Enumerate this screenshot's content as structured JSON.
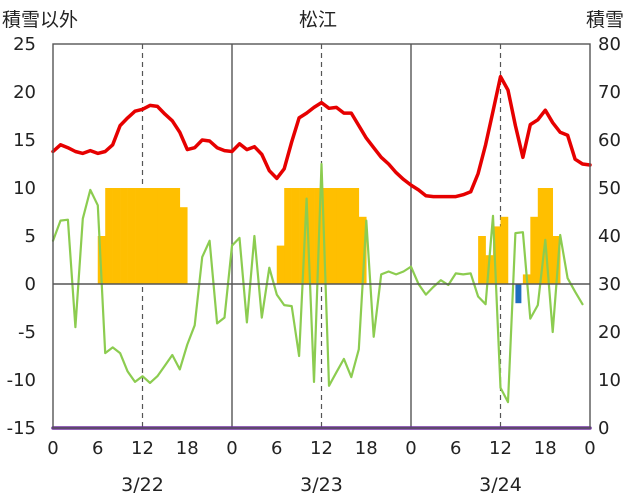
{
  "chart_data": {
    "type": "bar+line",
    "title": "松江",
    "left_axis_label": "積雪以外",
    "right_axis_label": "積雪",
    "left_ylim": [
      -15,
      25
    ],
    "left_ticks": [
      25,
      20,
      15,
      10,
      5,
      0,
      -5,
      -10,
      -15
    ],
    "right_ylim": [
      0,
      80
    ],
    "right_ticks": [
      80,
      70,
      60,
      50,
      40,
      30,
      20,
      10,
      0
    ],
    "x_range_hours": [
      0,
      72
    ],
    "x_ticks": [
      {
        "h": 0,
        "label": "0"
      },
      {
        "h": 6,
        "label": "6"
      },
      {
        "h": 12,
        "label": "12"
      },
      {
        "h": 18,
        "label": "18"
      },
      {
        "h": 24,
        "label": "0"
      },
      {
        "h": 30,
        "label": "6"
      },
      {
        "h": 36,
        "label": "12"
      },
      {
        "h": 42,
        "label": "18"
      },
      {
        "h": 48,
        "label": "0"
      },
      {
        "h": 54,
        "label": "6"
      },
      {
        "h": 60,
        "label": "12"
      },
      {
        "h": 66,
        "label": "18"
      },
      {
        "h": 72,
        "label": "0"
      }
    ],
    "dates": [
      {
        "h": 12,
        "label": "3/22"
      },
      {
        "h": 36,
        "label": "3/23"
      },
      {
        "h": 60,
        "label": "3/24"
      }
    ],
    "grid": true,
    "colors": {
      "temperature": "#e60000",
      "precip_bar": "#ffbf00",
      "snow_bar": "#1f6fbf",
      "wind": "#8ccc50",
      "snow_depth": "#7030a0",
      "grid": "#555555"
    },
    "series": [
      {
        "key": "temperature",
        "type": "line",
        "axis": "left",
        "points": [
          [
            0,
            13.8
          ],
          [
            1,
            14.5
          ],
          [
            2,
            14.2
          ],
          [
            3,
            13.8
          ],
          [
            4,
            13.6
          ],
          [
            5,
            13.9
          ],
          [
            6,
            13.6
          ],
          [
            7,
            13.8
          ],
          [
            8,
            14.5
          ],
          [
            9,
            16.5
          ],
          [
            10,
            17.3
          ],
          [
            11,
            18.0
          ],
          [
            12,
            18.2
          ],
          [
            13,
            18.6
          ],
          [
            14,
            18.5
          ],
          [
            15,
            17.7
          ],
          [
            16,
            17.0
          ],
          [
            17,
            15.8
          ],
          [
            18,
            14.0
          ],
          [
            19,
            14.2
          ],
          [
            20,
            15.0
          ],
          [
            21,
            14.9
          ],
          [
            22,
            14.2
          ],
          [
            23,
            13.9
          ],
          [
            24,
            13.8
          ],
          [
            25,
            14.6
          ],
          [
            26,
            14.0
          ],
          [
            27,
            14.3
          ],
          [
            28,
            13.5
          ],
          [
            29,
            11.8
          ],
          [
            30,
            11.0
          ],
          [
            31,
            12.0
          ],
          [
            32,
            14.8
          ],
          [
            33,
            17.3
          ],
          [
            34,
            17.8
          ],
          [
            35,
            18.4
          ],
          [
            36,
            18.9
          ],
          [
            37,
            18.3
          ],
          [
            38,
            18.4
          ],
          [
            39,
            17.8
          ],
          [
            40,
            17.8
          ],
          [
            41,
            16.5
          ],
          [
            42,
            15.2
          ],
          [
            43,
            14.2
          ],
          [
            44,
            13.2
          ],
          [
            45,
            12.5
          ],
          [
            46,
            11.6
          ],
          [
            47,
            10.9
          ],
          [
            48,
            10.3
          ],
          [
            49,
            9.8
          ],
          [
            50,
            9.2
          ],
          [
            51,
            9.1
          ],
          [
            52,
            9.1
          ],
          [
            53,
            9.1
          ],
          [
            54,
            9.1
          ],
          [
            55,
            9.3
          ],
          [
            56,
            9.6
          ],
          [
            57,
            11.5
          ],
          [
            58,
            14.5
          ],
          [
            59,
            18.0
          ],
          [
            60,
            21.6
          ],
          [
            61,
            20.2
          ],
          [
            62,
            16.5
          ],
          [
            63,
            13.2
          ],
          [
            64,
            16.6
          ],
          [
            65,
            17.1
          ],
          [
            66,
            18.1
          ],
          [
            67,
            16.8
          ],
          [
            68,
            15.8
          ],
          [
            69,
            15.5
          ],
          [
            70,
            13.0
          ],
          [
            71,
            12.5
          ],
          [
            72,
            12.4
          ]
        ]
      },
      {
        "key": "wind",
        "type": "line",
        "axis": "left",
        "points": [
          [
            0,
            4.5
          ],
          [
            1,
            6.6
          ],
          [
            2,
            6.7
          ],
          [
            3,
            -4.5
          ],
          [
            4,
            6.8
          ],
          [
            5,
            9.8
          ],
          [
            6,
            8.2
          ],
          [
            7,
            -7.2
          ],
          [
            8,
            -6.6
          ],
          [
            9,
            -7.2
          ],
          [
            10,
            -9.1
          ],
          [
            11,
            -10.2
          ],
          [
            12,
            -9.6
          ],
          [
            13,
            -10.3
          ],
          [
            14,
            -9.6
          ],
          [
            15,
            -8.5
          ],
          [
            16,
            -7.4
          ],
          [
            17,
            -8.9
          ],
          [
            18,
            -6.3
          ],
          [
            19,
            -4.3
          ],
          [
            20,
            2.8
          ],
          [
            21,
            4.5
          ],
          [
            22,
            -4.1
          ],
          [
            23,
            -3.5
          ],
          [
            24,
            4.0
          ],
          [
            25,
            4.8
          ],
          [
            26,
            -4.0
          ],
          [
            27,
            5.0
          ],
          [
            28,
            -3.5
          ],
          [
            29,
            1.7
          ],
          [
            30,
            -1.1
          ],
          [
            31,
            -2.2
          ],
          [
            32,
            -2.3
          ],
          [
            33,
            -7.5
          ],
          [
            34,
            8.9
          ],
          [
            35,
            -10.2
          ],
          [
            36,
            12.5
          ],
          [
            37,
            -10.6
          ],
          [
            38,
            -9.2
          ],
          [
            39,
            -7.8
          ],
          [
            40,
            -9.7
          ],
          [
            41,
            -6.8
          ],
          [
            42,
            6.6
          ],
          [
            43,
            -5.5
          ],
          [
            44,
            1.0
          ],
          [
            45,
            1.3
          ],
          [
            46,
            1.0
          ],
          [
            47,
            1.3
          ],
          [
            48,
            1.8
          ],
          [
            49,
            0.0
          ],
          [
            50,
            -1.1
          ],
          [
            51,
            -0.3
          ],
          [
            52,
            0.4
          ],
          [
            53,
            -0.1
          ],
          [
            54,
            1.1
          ],
          [
            55,
            1.0
          ],
          [
            56,
            1.1
          ],
          [
            57,
            -1.3
          ],
          [
            58,
            -2.1
          ],
          [
            59,
            7.1
          ],
          [
            60,
            -10.8
          ],
          [
            61,
            -12.3
          ],
          [
            62,
            5.3
          ],
          [
            63,
            5.4
          ],
          [
            64,
            -3.6
          ],
          [
            65,
            -2.2
          ],
          [
            66,
            4.6
          ],
          [
            67,
            -5.0
          ],
          [
            68,
            5.1
          ],
          [
            69,
            0.6
          ],
          [
            70,
            -0.8
          ],
          [
            71,
            -2.1
          ]
        ]
      },
      {
        "key": "precip",
        "type": "bar",
        "axis": "left",
        "bars": [
          [
            6,
            5
          ],
          [
            7,
            10
          ],
          [
            8,
            10
          ],
          [
            9,
            10
          ],
          [
            10,
            10
          ],
          [
            11,
            10
          ],
          [
            12,
            10
          ],
          [
            13,
            10
          ],
          [
            14,
            10
          ],
          [
            15,
            10
          ],
          [
            16,
            10
          ],
          [
            17,
            8
          ],
          [
            30,
            4
          ],
          [
            31,
            10
          ],
          [
            32,
            10
          ],
          [
            33,
            10
          ],
          [
            34,
            10
          ],
          [
            35,
            10
          ],
          [
            36,
            10
          ],
          [
            37,
            10
          ],
          [
            38,
            10
          ],
          [
            39,
            10
          ],
          [
            40,
            10
          ],
          [
            41,
            7
          ],
          [
            57,
            5
          ],
          [
            58,
            3
          ],
          [
            59,
            6
          ],
          [
            60,
            7
          ],
          [
            63,
            1
          ],
          [
            64,
            7
          ],
          [
            65,
            10
          ],
          [
            66,
            10
          ],
          [
            67,
            5
          ]
        ]
      },
      {
        "key": "snow",
        "type": "bar",
        "axis": "left",
        "bars": [
          [
            62,
            -2
          ]
        ]
      },
      {
        "key": "snow_depth",
        "type": "line",
        "axis": "right",
        "points": [
          [
            0,
            0
          ],
          [
            72,
            0
          ]
        ]
      }
    ]
  }
}
